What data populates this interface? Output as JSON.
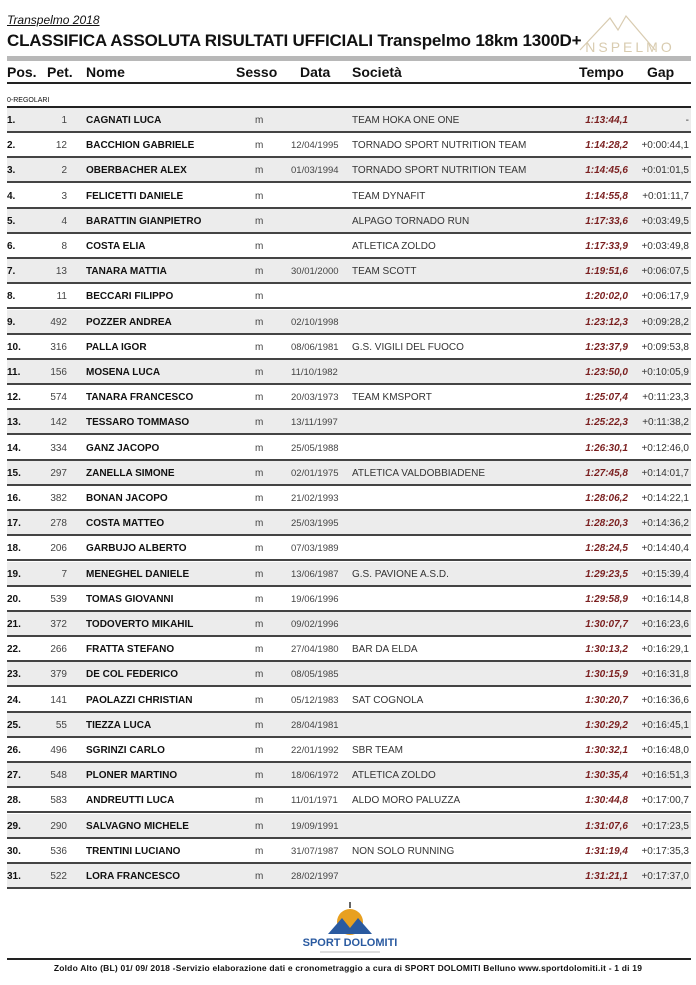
{
  "header": {
    "event": "Transpelmo 2018",
    "title": "CLASSIFICA ASSOLUTA RISULTATI UFFICIALI Transpelmo 18km 1300D+",
    "logo_text": "TRANSPELMO"
  },
  "columns": {
    "pos": "Pos.",
    "pet": "Pet.",
    "name": "Nome",
    "sex": "Sesso",
    "date": "Data",
    "club": "Società",
    "time": "Tempo",
    "gap": "Gap"
  },
  "category": "0-REGOLARI",
  "rows": [
    {
      "pos": "1.",
      "pet": "1",
      "name": "CAGNATI LUCA",
      "sex": "m",
      "date": "",
      "club": "TEAM HOKA ONE ONE",
      "time": "1:13:44,1",
      "gap": "-"
    },
    {
      "pos": "2.",
      "pet": "12",
      "name": "BACCHION GABRIELE",
      "sex": "m",
      "date": "12/04/1995",
      "club": "TORNADO SPORT NUTRITION TEAM",
      "time": "1:14:28,2",
      "gap": "+0:00:44,1"
    },
    {
      "pos": "3.",
      "pet": "2",
      "name": "OBERBACHER ALEX",
      "sex": "m",
      "date": "01/03/1994",
      "club": "TORNADO SPORT NUTRITION TEAM",
      "time": "1:14:45,6",
      "gap": "+0:01:01,5"
    },
    {
      "pos": "4.",
      "pet": "3",
      "name": "FELICETTI DANIELE",
      "sex": "m",
      "date": "",
      "club": "TEAM DYNAFIT",
      "time": "1:14:55,8",
      "gap": "+0:01:11,7"
    },
    {
      "pos": "5.",
      "pet": "4",
      "name": "BARATTIN GIANPIETRO",
      "sex": "m",
      "date": "",
      "club": "ALPAGO TORNADO RUN",
      "time": "1:17:33,6",
      "gap": "+0:03:49,5"
    },
    {
      "pos": "6.",
      "pet": "8",
      "name": "COSTA ELIA",
      "sex": "m",
      "date": "",
      "club": "ATLETICA ZOLDO",
      "time": "1:17:33,9",
      "gap": "+0:03:49,8"
    },
    {
      "pos": "7.",
      "pet": "13",
      "name": "TANARA MATTIA",
      "sex": "m",
      "date": "30/01/2000",
      "club": "TEAM SCOTT",
      "time": "1:19:51,6",
      "gap": "+0:06:07,5"
    },
    {
      "pos": "8.",
      "pet": "11",
      "name": "BECCARI FILIPPO",
      "sex": "m",
      "date": "",
      "club": "",
      "time": "1:20:02,0",
      "gap": "+0:06:17,9"
    },
    {
      "pos": "9.",
      "pet": "492",
      "name": "POZZER ANDREA",
      "sex": "m",
      "date": "02/10/1998",
      "club": "",
      "time": "1:23:12,3",
      "gap": "+0:09:28,2"
    },
    {
      "pos": "10.",
      "pet": "316",
      "name": "PALLA IGOR",
      "sex": "m",
      "date": "08/06/1981",
      "club": "G.S. VIGILI DEL FUOCO",
      "time": "1:23:37,9",
      "gap": "+0:09:53,8"
    },
    {
      "pos": "11.",
      "pet": "156",
      "name": "MOSENA LUCA",
      "sex": "m",
      "date": "11/10/1982",
      "club": "",
      "time": "1:23:50,0",
      "gap": "+0:10:05,9"
    },
    {
      "pos": "12.",
      "pet": "574",
      "name": "TANARA FRANCESCO",
      "sex": "m",
      "date": "20/03/1973",
      "club": "TEAM KMSPORT",
      "time": "1:25:07,4",
      "gap": "+0:11:23,3"
    },
    {
      "pos": "13.",
      "pet": "142",
      "name": "TESSARO TOMMASO",
      "sex": "m",
      "date": "13/11/1997",
      "club": "",
      "time": "1:25:22,3",
      "gap": "+0:11:38,2"
    },
    {
      "pos": "14.",
      "pet": "334",
      "name": "GANZ JACOPO",
      "sex": "m",
      "date": "25/05/1988",
      "club": "",
      "time": "1:26:30,1",
      "gap": "+0:12:46,0"
    },
    {
      "pos": "15.",
      "pet": "297",
      "name": "ZANELLA SIMONE",
      "sex": "m",
      "date": "02/01/1975",
      "club": "ATLETICA VALDOBBIADENE",
      "time": "1:27:45,8",
      "gap": "+0:14:01,7"
    },
    {
      "pos": "16.",
      "pet": "382",
      "name": "BONAN JACOPO",
      "sex": "m",
      "date": "21/02/1993",
      "club": "",
      "time": "1:28:06,2",
      "gap": "+0:14:22,1"
    },
    {
      "pos": "17.",
      "pet": "278",
      "name": "COSTA MATTEO",
      "sex": "m",
      "date": "25/03/1995",
      "club": "",
      "time": "1:28:20,3",
      "gap": "+0:14:36,2"
    },
    {
      "pos": "18.",
      "pet": "206",
      "name": "GARBUJO ALBERTO",
      "sex": "m",
      "date": "07/03/1989",
      "club": "",
      "time": "1:28:24,5",
      "gap": "+0:14:40,4"
    },
    {
      "pos": "19.",
      "pet": "7",
      "name": "MENEGHEL DANIELE",
      "sex": "m",
      "date": "13/06/1987",
      "club": "G.S. PAVIONE A.S.D.",
      "time": "1:29:23,5",
      "gap": "+0:15:39,4"
    },
    {
      "pos": "20.",
      "pet": "539",
      "name": "TOMAS GIOVANNI",
      "sex": "m",
      "date": "19/06/1996",
      "club": "",
      "time": "1:29:58,9",
      "gap": "+0:16:14,8"
    },
    {
      "pos": "21.",
      "pet": "372",
      "name": "TODOVERTO MIKAHIL",
      "sex": "m",
      "date": "09/02/1996",
      "club": "",
      "time": "1:30:07,7",
      "gap": "+0:16:23,6"
    },
    {
      "pos": "22.",
      "pet": "266",
      "name": "FRATTA STEFANO",
      "sex": "m",
      "date": "27/04/1980",
      "club": "BAR DA ELDA",
      "time": "1:30:13,2",
      "gap": "+0:16:29,1"
    },
    {
      "pos": "23.",
      "pet": "379",
      "name": "DE COL FEDERICO",
      "sex": "m",
      "date": "08/05/1985",
      "club": "",
      "time": "1:30:15,9",
      "gap": "+0:16:31,8"
    },
    {
      "pos": "24.",
      "pet": "141",
      "name": "PAOLAZZI CHRISTIAN",
      "sex": "m",
      "date": "05/12/1983",
      "club": "SAT COGNOLA",
      "time": "1:30:20,7",
      "gap": "+0:16:36,6"
    },
    {
      "pos": "25.",
      "pet": "55",
      "name": "TIEZZA LUCA",
      "sex": "m",
      "date": "28/04/1981",
      "club": "",
      "time": "1:30:29,2",
      "gap": "+0:16:45,1"
    },
    {
      "pos": "26.",
      "pet": "496",
      "name": "SGRINZI CARLO",
      "sex": "m",
      "date": "22/01/1992",
      "club": "SBR TEAM",
      "time": "1:30:32,1",
      "gap": "+0:16:48,0"
    },
    {
      "pos": "27.",
      "pet": "548",
      "name": "PLONER MARTINO",
      "sex": "m",
      "date": "18/06/1972",
      "club": "ATLETICA ZOLDO",
      "time": "1:30:35,4",
      "gap": "+0:16:51,3"
    },
    {
      "pos": "28.",
      "pet": "583",
      "name": "ANDREUTTI LUCA",
      "sex": "m",
      "date": "11/01/1971",
      "club": "ALDO MORO PALUZZA",
      "time": "1:30:44,8",
      "gap": "+0:17:00,7"
    },
    {
      "pos": "29.",
      "pet": "290",
      "name": "SALVAGNO MICHELE",
      "sex": "m",
      "date": "19/09/1991",
      "club": "",
      "time": "1:31:07,6",
      "gap": "+0:17:23,5"
    },
    {
      "pos": "30.",
      "pet": "536",
      "name": "TRENTINI LUCIANO",
      "sex": "m",
      "date": "31/07/1987",
      "club": "NON SOLO RUNNING",
      "time": "1:31:19,4",
      "gap": "+0:17:35,3"
    },
    {
      "pos": "31.",
      "pet": "522",
      "name": "LORA FRANCESCO",
      "sex": "m",
      "date": "28/02/1997",
      "club": "",
      "time": "1:31:21,1",
      "gap": "+0:17:37,0"
    }
  ],
  "sponsor_logo": "SPORT DOLOMITI",
  "footer": "Zoldo Alto (BL) 01/ 09/ 2018 -Servizio elaborazione dati e cronometraggio a cura di SPORT DOLOMITI Belluno  www.sportdolomiti.it - 1 di 19",
  "colors": {
    "time": "#7a1f1f",
    "row_alt": "#ececec",
    "logo_orange": "#e8a020",
    "logo_blue": "#2a5aa0"
  }
}
